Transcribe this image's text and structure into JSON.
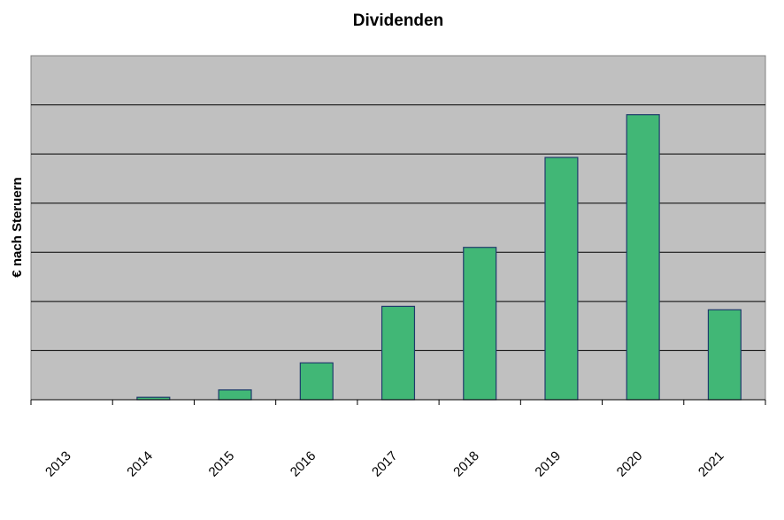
{
  "chart_data": {
    "type": "bar",
    "title": "Dividenden",
    "xlabel": "",
    "ylabel": "€ nach Steruern",
    "categories": [
      "2013",
      "2014",
      "2015",
      "2016",
      "2017",
      "2018",
      "2019",
      "2020",
      "2021"
    ],
    "values": [
      0,
      0.05,
      0.2,
      0.75,
      1.9,
      3.1,
      4.93,
      5.8,
      1.83
    ],
    "ylim": [
      0,
      7
    ],
    "grid": true,
    "legend": "none",
    "colors": {
      "plot_background": "#c0c0c0",
      "bar_fill": "#41b776",
      "bar_stroke": "#1f3a6b",
      "gridline": "#000000"
    }
  }
}
